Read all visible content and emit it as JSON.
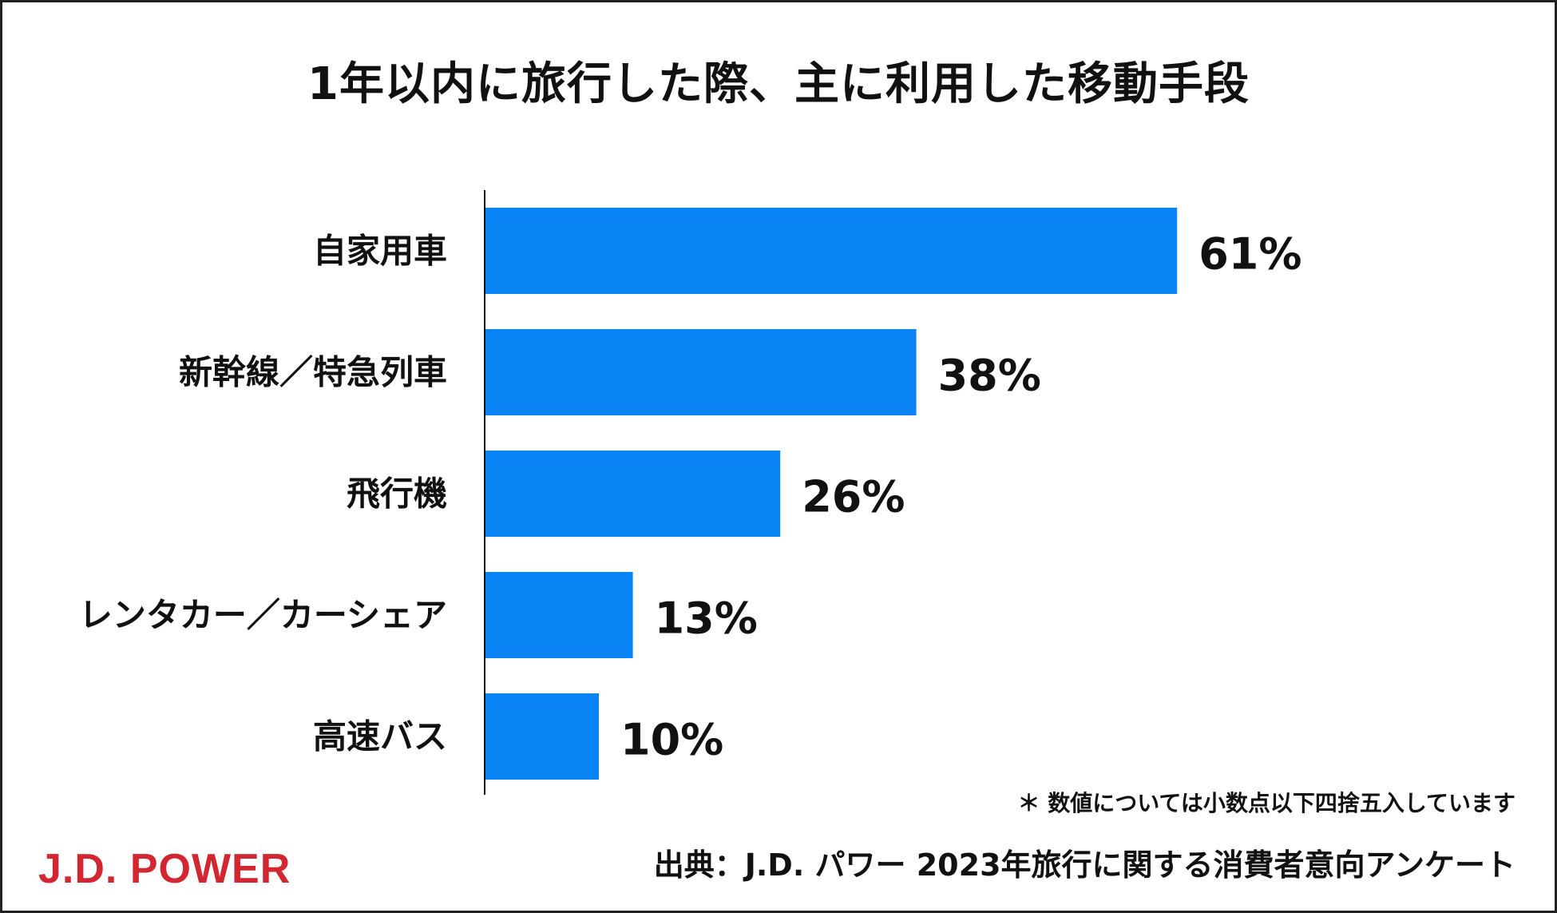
{
  "colors": {
    "bar": "#0A84F5",
    "logo": "#D22630",
    "axis": "#111111"
  },
  "title": "1年以内に旅行した際、主に利用した移動手段",
  "footnote": "＊ 数値については小数点以下四捨五入しています",
  "source": "出典：J.D. パワー 2023年旅行に関する消費者意向アンケート",
  "logo": "J.D. POWER",
  "chart_data": {
    "type": "bar",
    "orientation": "horizontal",
    "title": "1年以内に旅行した際、主に利用した移動手段",
    "categories": [
      "自家用車",
      "新幹線／特急列車",
      "飛行機",
      "レンタカー／カーシェア",
      "高速バス"
    ],
    "values": [
      61,
      38,
      26,
      13,
      10
    ],
    "value_labels": [
      "61%",
      "38%",
      "26%",
      "13%",
      "10%"
    ],
    "unit": "%",
    "grid": false,
    "legend": "none"
  }
}
